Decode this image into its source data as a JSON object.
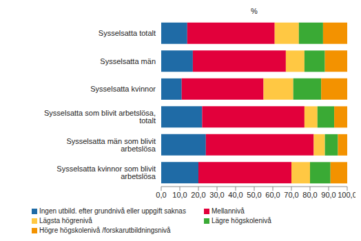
{
  "chart_data": {
    "type": "bar",
    "orientation": "horizontal",
    "stacked": true,
    "grid": false,
    "legend": "bottom",
    "title": "%",
    "categories": [
      "Sysselsatta totalt",
      "Sysselsatta män",
      "Sysselsatta kvinnor",
      "Sysselsatta som blivit arbetslösa, totalt",
      "Sysselsatta män som blivit arbetslösa",
      "Sysselsatta kvinnor som blivit arbetslösa"
    ],
    "series": [
      {
        "name": "Ingen utbild. efter grundnivå eller uppgift saknas",
        "color": "#1f6ba6",
        "values": [
          14,
          17,
          11,
          22,
          24,
          20
        ]
      },
      {
        "name": "Mellannivå",
        "color": "#e2003b",
        "values": [
          47,
          50,
          44,
          55,
          58,
          50
        ]
      },
      {
        "name": "Lägsta högrenivå",
        "color": "#ffc843",
        "values": [
          13,
          10,
          16,
          7,
          6,
          10
        ]
      },
      {
        "name": "Lägre högskolenivå",
        "color": "#3aaa35",
        "values": [
          13,
          11,
          15,
          9,
          7,
          11
        ]
      },
      {
        "name": "Högre högskolenivå /forskarutbildningsnivå",
        "color": "#f39200",
        "values": [
          13,
          12,
          14,
          7,
          5,
          9
        ]
      }
    ],
    "xlim": [
      0,
      100
    ],
    "xticks": [
      {
        "value": 0,
        "label": "0,0"
      },
      {
        "value": 10,
        "label": "10,0"
      },
      {
        "value": 20,
        "label": "20,0"
      },
      {
        "value": 30,
        "label": "30,0"
      },
      {
        "value": 40,
        "label": "40,0"
      },
      {
        "value": 50,
        "label": "50,0"
      },
      {
        "value": 60,
        "label": "60,0"
      },
      {
        "value": 70,
        "label": "70,0"
      },
      {
        "value": 80,
        "label": "80,0"
      },
      {
        "value": 90,
        "label": "90,0"
      },
      {
        "value": 100,
        "label": "100,0"
      }
    ]
  }
}
